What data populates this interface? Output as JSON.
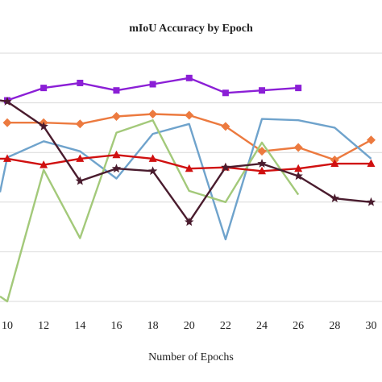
{
  "chart_data": {
    "type": "line",
    "title": "mIoU Accuracy by Epoch",
    "xlabel": "Number of Epochs",
    "ylabel": "",
    "x_ticks": [
      10,
      12,
      14,
      16,
      18,
      20,
      22,
      24,
      26,
      28,
      30
    ],
    "xlim": [
      9.6,
      30.6
    ],
    "ylim": [
      0,
      100
    ],
    "grid": "horizontal",
    "legend": "none",
    "series": [
      {
        "color": "#8b1fd6",
        "marker": "square",
        "x": [
          10,
          12,
          14,
          16,
          18,
          20,
          22,
          24,
          26
        ],
        "y": [
          81,
          86,
          88,
          85,
          87.5,
          90,
          84,
          85,
          86
        ]
      },
      {
        "color": "#ec7a3f",
        "marker": "diamond",
        "x": [
          10,
          12,
          14,
          16,
          18,
          20,
          22,
          24,
          26,
          28,
          30
        ],
        "y": [
          72,
          72,
          71.5,
          74.5,
          75.5,
          75,
          70.5,
          60.5,
          62,
          57,
          65
        ]
      },
      {
        "color": "#6fa3cc",
        "marker": "none",
        "x": [
          9.6,
          10,
          12,
          14,
          16,
          18,
          20,
          22,
          24,
          26,
          28,
          30
        ],
        "y": [
          44,
          58,
          64.5,
          60.5,
          49.5,
          67.5,
          71.5,
          25,
          73.5,
          73,
          70,
          57.5
        ]
      },
      {
        "color": "#a3c97a",
        "marker": "none",
        "x": [
          9.6,
          10,
          12,
          14,
          16,
          18,
          20,
          22,
          24,
          26
        ],
        "y": [
          2,
          0,
          53,
          25.5,
          68,
          73,
          44.5,
          40,
          64,
          43
        ]
      },
      {
        "color": "#d01010",
        "marker": "triangle",
        "x": [
          9.6,
          10,
          12,
          14,
          16,
          18,
          20,
          22,
          24,
          26,
          28,
          30
        ],
        "y": [
          57.5,
          57.5,
          55,
          57.5,
          59,
          57.5,
          53.5,
          54,
          52.5,
          53.5,
          55.5,
          55.5
        ]
      },
      {
        "color": "#4a1c2e",
        "marker": "star",
        "x": [
          9.6,
          10,
          12,
          14,
          16,
          18,
          20,
          22,
          24,
          26,
          28,
          30
        ],
        "y": [
          81,
          80.5,
          70.5,
          48.5,
          53.5,
          52.5,
          32,
          54,
          55.5,
          50.5,
          41.5,
          40
        ]
      }
    ]
  }
}
